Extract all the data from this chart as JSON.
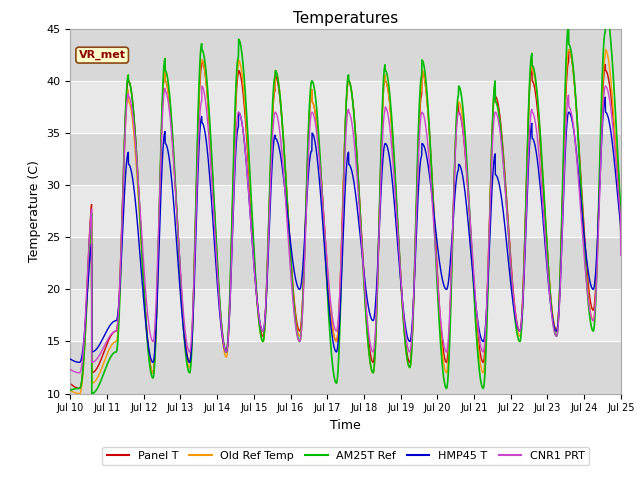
{
  "title": "Temperatures",
  "xlabel": "Time",
  "ylabel": "Temperature (C)",
  "ylim": [
    10,
    45
  ],
  "yticks": [
    10,
    15,
    20,
    25,
    30,
    35,
    40,
    45
  ],
  "annotation_text": "VR_met",
  "fig_bg": "#ffffff",
  "plot_bg": "#e8e8e8",
  "band_colors": [
    "#d8d8d8",
    "#e8e8e8"
  ],
  "band_ranges": [
    [
      10,
      15
    ],
    [
      15,
      20
    ],
    [
      20,
      25
    ],
    [
      25,
      30
    ],
    [
      30,
      35
    ],
    [
      35,
      40
    ],
    [
      40,
      45
    ]
  ],
  "series": [
    {
      "label": "Panel T",
      "color": "#cc0000",
      "linewidth": 1.0,
      "peak_vals": [
        12,
        40,
        40,
        42,
        41,
        40.5,
        38,
        40,
        40,
        41,
        37,
        38.5,
        40,
        43,
        41,
        42
      ],
      "trough_vals": [
        10.5,
        16,
        12,
        13,
        14,
        15.5,
        16,
        15,
        13,
        13,
        13,
        13,
        16,
        16,
        18,
        21
      ]
    },
    {
      "label": "Old Ref Temp",
      "color": "#ff9900",
      "linewidth": 1.0,
      "peak_vals": [
        11,
        38,
        40,
        42,
        42,
        41,
        38,
        40,
        40,
        41,
        38,
        38,
        41,
        43,
        43,
        42
      ],
      "trough_vals": [
        10,
        15,
        12,
        12.5,
        13.5,
        15,
        15.5,
        15,
        12,
        12.5,
        12,
        12,
        15.5,
        16,
        17,
        18
      ]
    },
    {
      "label": "AM25T Ref",
      "color": "#00bb00",
      "linewidth": 1.2,
      "peak_vals": [
        10,
        40,
        41,
        43,
        44,
        41,
        40,
        40,
        41,
        42,
        39.5,
        38,
        41.5,
        43.5,
        47,
        43
      ],
      "trough_vals": [
        10.5,
        14,
        11.5,
        12,
        14,
        15,
        15,
        11,
        12,
        12.5,
        10.5,
        10.5,
        15,
        15.5,
        16,
        19
      ]
    },
    {
      "label": "HMP45 T",
      "color": "#0000cc",
      "linewidth": 1.0,
      "peak_vals": [
        14,
        32,
        34,
        36,
        37,
        34.5,
        35,
        32,
        34,
        34,
        32,
        31,
        34.5,
        37,
        37,
        39.5
      ],
      "trough_vals": [
        13,
        17,
        13,
        13,
        14,
        16,
        20,
        14,
        17,
        15,
        20,
        15,
        16,
        16,
        20,
        21
      ]
    },
    {
      "label": "CNR1 PRT",
      "color": "#cc44cc",
      "linewidth": 1.0,
      "peak_vals": [
        13,
        38.5,
        39,
        39.5,
        37,
        37,
        37,
        37,
        37.5,
        37,
        37,
        37,
        37,
        37.5,
        39.5,
        39.5
      ],
      "trough_vals": [
        12,
        16,
        15,
        14,
        14,
        16,
        15,
        16,
        14,
        14,
        14,
        14,
        16,
        15.5,
        17,
        21
      ]
    }
  ]
}
